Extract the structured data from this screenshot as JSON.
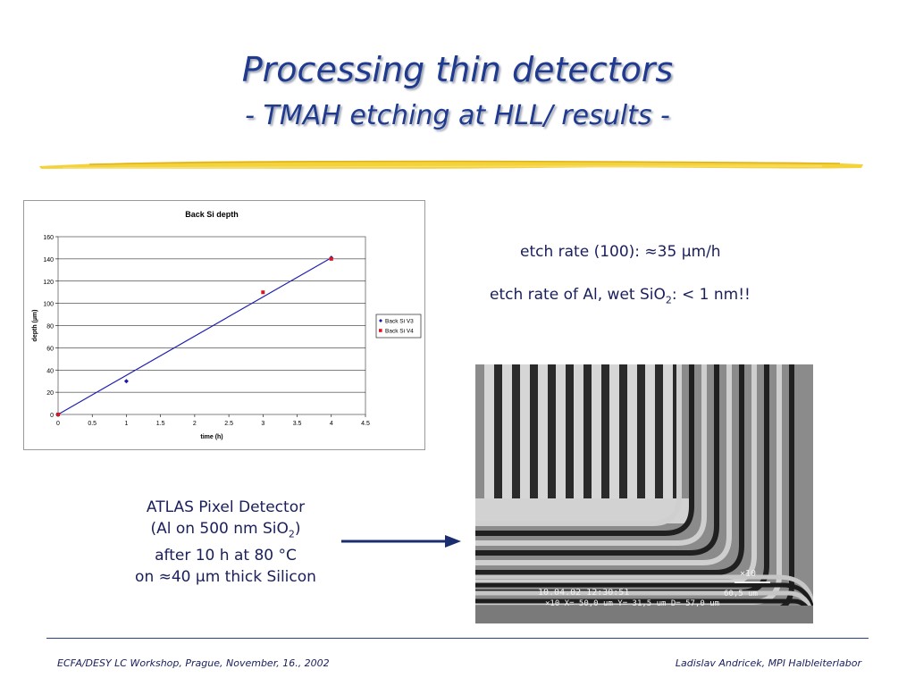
{
  "slide": {
    "title": "Processing thin detectors",
    "subtitle": "- TMAH etching at HLL/ results -",
    "etch_rate_100": "etch rate (100): ≈35 µm/h",
    "etch_rate_al_pre": "etch rate of Al, wet SiO",
    "etch_rate_al_sub": "2",
    "etch_rate_al_post": ": < 1 nm!!",
    "caption_line1": "ATLAS Pixel Detector",
    "caption_line2_pre": "(Al on 500 nm SiO",
    "caption_line2_sub": "2",
    "caption_line2_post": ")",
    "caption_line3": "after 10 h at 80 °C",
    "caption_line4": "on ≈40 µm thick Silicon",
    "footer_left": "ECFA/DESY LC Workshop, Prague, November, 16., 2002",
    "footer_right": "Ladislav Andricek, MPI Halbleiterlabor"
  },
  "sem_image": {
    "label_line1": "10.04.02 12:30:51",
    "label_line2": "×10 X= 50,0 um Y= 31,5 um D= 57,0 um",
    "scale_mag": "×10",
    "scale_len": "60,5 um"
  },
  "chart_data": {
    "type": "scatter",
    "title": "Back Si depth",
    "xlabel": "time (h)",
    "ylabel": "depth (µm)",
    "xlim": [
      0,
      4.5
    ],
    "ylim": [
      0,
      160
    ],
    "xticks": [
      "0",
      "0.5",
      "1",
      "1.5",
      "2",
      "2.5",
      "3",
      "3.5",
      "4",
      "4.5"
    ],
    "yticks": [
      "0",
      "20",
      "40",
      "60",
      "80",
      "100",
      "120",
      "140",
      "160"
    ],
    "grid": "horizontal",
    "legend": "right",
    "series": [
      {
        "name": "Back Si V3",
        "color": "#1a1aa6",
        "marker": "diamond",
        "x": [
          0,
          1,
          4
        ],
        "y": [
          0,
          30,
          141
        ]
      },
      {
        "name": "Back Si V4",
        "color": "#e0141e",
        "marker": "square",
        "x": [
          0,
          3,
          4
        ],
        "y": [
          0,
          110,
          140
        ]
      }
    ],
    "fit_line": {
      "color": "#2020b0",
      "x": [
        0,
        4
      ],
      "y": [
        0,
        141
      ]
    }
  }
}
